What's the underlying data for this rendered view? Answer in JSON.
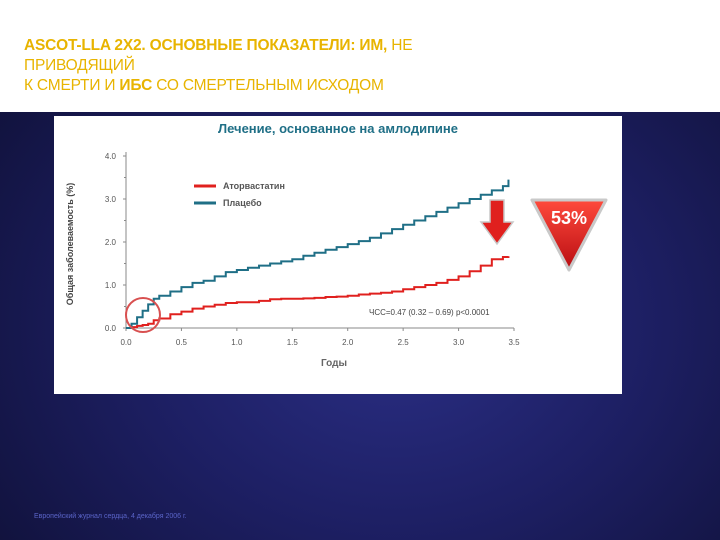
{
  "header": {
    "title_l1_bold": "ASCOT-LLA 2X2. ОСНОВНЫЕ ПОКАЗАТЕЛИ: ИМ,",
    "title_l1_rest": " НЕ",
    "title_l2": "ПРИВОДЯЩИЙ",
    "title_l3_a": "К СМЕРТИ И ",
    "title_l3_bold": "ИБС",
    "title_l3_b": " СО СМЕРТЕЛЬНЫМ ИСХОДОМ"
  },
  "colors": {
    "title": "#e8b400",
    "atorvastatin": "#e0201e",
    "placebo": "#1f6f86",
    "chart_title": "#1f6f86",
    "badge": "#e0201e"
  },
  "badge_label": "53%",
  "footer": "Европейский журнал сердца, 4 декабря 2006 г.",
  "chart_data": {
    "type": "line",
    "title": "Лечение, основанное на амлодипине",
    "xlabel": "Годы",
    "ylabel": "Общая заболеваемость (%)",
    "xlim": [
      0,
      3.5
    ],
    "ylim": [
      0,
      4.0
    ],
    "xticks": [
      "0.0",
      "0.5",
      "1.0",
      "1.5",
      "2.0",
      "2.5",
      "3.0",
      "3.5"
    ],
    "yticks": [
      "0.0",
      "1.0",
      "2.0",
      "3.0",
      "4.0"
    ],
    "annotation": "ЧСС=0.47 (0.32 – 0.69) p<0.0001",
    "legend_position": "upper-left",
    "series": [
      {
        "name": "Аторвастатин",
        "color": "#e0201e",
        "x": [
          0,
          0.05,
          0.1,
          0.15,
          0.2,
          0.25,
          0.3,
          0.4,
          0.5,
          0.6,
          0.7,
          0.8,
          0.9,
          1.0,
          1.1,
          1.2,
          1.3,
          1.4,
          1.5,
          1.6,
          1.7,
          1.8,
          1.9,
          2.0,
          2.1,
          2.2,
          2.3,
          2.4,
          2.5,
          2.6,
          2.7,
          2.8,
          2.9,
          3.0,
          3.1,
          3.2,
          3.3,
          3.4,
          3.45
        ],
        "y": [
          0,
          0.02,
          0.05,
          0.07,
          0.1,
          0.18,
          0.22,
          0.32,
          0.38,
          0.45,
          0.5,
          0.54,
          0.58,
          0.6,
          0.6,
          0.63,
          0.67,
          0.68,
          0.68,
          0.69,
          0.7,
          0.72,
          0.73,
          0.75,
          0.78,
          0.8,
          0.82,
          0.85,
          0.9,
          0.95,
          1.0,
          1.05,
          1.12,
          1.2,
          1.32,
          1.45,
          1.6,
          1.65,
          1.67
        ]
      },
      {
        "name": "Плацебо",
        "color": "#1f6f86",
        "x": [
          0,
          0.05,
          0.1,
          0.15,
          0.2,
          0.25,
          0.3,
          0.4,
          0.5,
          0.6,
          0.7,
          0.8,
          0.9,
          1.0,
          1.1,
          1.2,
          1.3,
          1.4,
          1.5,
          1.6,
          1.7,
          1.8,
          1.9,
          2.0,
          2.1,
          2.2,
          2.3,
          2.4,
          2.5,
          2.6,
          2.7,
          2.8,
          2.9,
          3.0,
          3.1,
          3.2,
          3.3,
          3.4,
          3.45
        ],
        "y": [
          0,
          0.1,
          0.25,
          0.4,
          0.55,
          0.68,
          0.75,
          0.85,
          0.95,
          1.05,
          1.1,
          1.2,
          1.3,
          1.35,
          1.4,
          1.45,
          1.5,
          1.55,
          1.6,
          1.68,
          1.75,
          1.82,
          1.88,
          1.95,
          2.02,
          2.1,
          2.2,
          2.3,
          2.4,
          2.5,
          2.6,
          2.7,
          2.8,
          2.9,
          3.0,
          3.1,
          3.2,
          3.3,
          3.45
        ]
      }
    ]
  }
}
